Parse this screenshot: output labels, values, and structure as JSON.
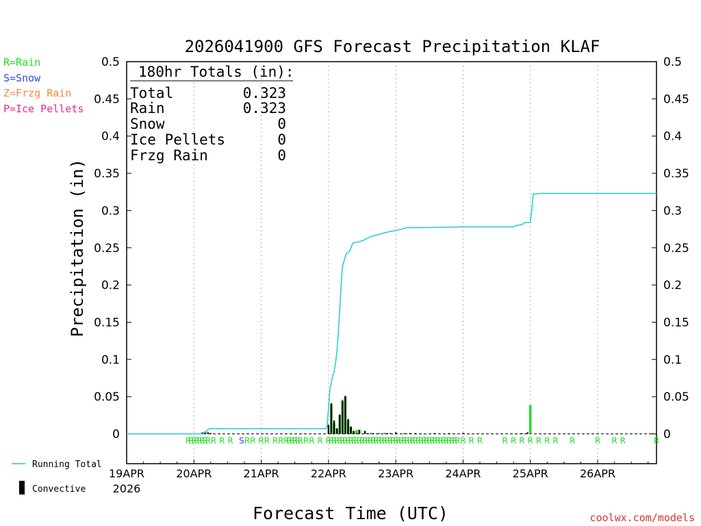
{
  "title": "2026041900 GFS Forecast Precipitation KLAF",
  "legend_types": [
    {
      "label": "R=Rain",
      "color": "#22dd22"
    },
    {
      "label": "S=Snow",
      "color": "#3344ee"
    },
    {
      "label": "Z=Frzg Rain",
      "color": "#f08c3c"
    },
    {
      "label": "P=Ice Pellets",
      "color": "#e8288c"
    }
  ],
  "totals": {
    "header": "180hr Totals (in):",
    "rows": [
      {
        "label": "Total",
        "value": "0.323"
      },
      {
        "label": "Rain",
        "value": "0.323"
      },
      {
        "label": "Snow",
        "value": "0"
      },
      {
        "label": "Ice Pellets",
        "value": "0"
      },
      {
        "label": "Frzg Rain",
        "value": "0"
      }
    ]
  },
  "bottom_legend": {
    "running_total": "Running Total",
    "convective": "Convective"
  },
  "watermark": "coolwx.com/models",
  "colors": {
    "running_total": "#22cccc",
    "convective": "#000000",
    "rain": "#22dd22",
    "snow": "#3344ee",
    "grid": "#aaaaaa",
    "title": "#000000",
    "watermark": "#e03030"
  },
  "chart_data": {
    "type": "bar",
    "title": "2026041900 GFS Forecast Precipitation KLAF",
    "xlabel": "Forecast Time (UTC)",
    "ylabel": "Precipitation (in)",
    "ylim": [
      -0.04,
      0.5
    ],
    "xlim_hours": [
      0,
      189
    ],
    "y_ticks": [
      0,
      0.05,
      0.1,
      0.15,
      0.2,
      0.25,
      0.3,
      0.35,
      0.4,
      0.45,
      0.5
    ],
    "y_tick_labels": [
      "0",
      "0.05",
      "0.1",
      "0.15",
      "0.2",
      "0.25",
      "0.3",
      "0.35",
      "0.4",
      "0.45",
      "0.5"
    ],
    "x_ticks": [
      {
        "hour": 0,
        "label": "19APR",
        "sublabel": "2026"
      },
      {
        "hour": 24,
        "label": "20APR"
      },
      {
        "hour": 48,
        "label": "21APR"
      },
      {
        "hour": 72,
        "label": "22APR"
      },
      {
        "hour": 96,
        "label": "23APR"
      },
      {
        "hour": 120,
        "label": "24APR"
      },
      {
        "hour": 144,
        "label": "25APR"
      },
      {
        "hour": 168,
        "label": "26APR"
      }
    ],
    "running_total": {
      "name": "Running Total",
      "points": [
        [
          0,
          0
        ],
        [
          27,
          0
        ],
        [
          28.5,
          0.003
        ],
        [
          29,
          0.006
        ],
        [
          30,
          0.007
        ],
        [
          71,
          0.007
        ],
        [
          71.5,
          0.01
        ],
        [
          72,
          0.035
        ],
        [
          72.5,
          0.06
        ],
        [
          73.5,
          0.078
        ],
        [
          74,
          0.083
        ],
        [
          74.5,
          0.095
        ],
        [
          75,
          0.11
        ],
        [
          75.5,
          0.135
        ],
        [
          76,
          0.165
        ],
        [
          76.5,
          0.2
        ],
        [
          77,
          0.225
        ],
        [
          78,
          0.238
        ],
        [
          78.5,
          0.243
        ],
        [
          79.5,
          0.245
        ],
        [
          80.5,
          0.255
        ],
        [
          81,
          0.257
        ],
        [
          83,
          0.258
        ],
        [
          85,
          0.261
        ],
        [
          87,
          0.265
        ],
        [
          90,
          0.268
        ],
        [
          93,
          0.271
        ],
        [
          97,
          0.274
        ],
        [
          100,
          0.277
        ],
        [
          104,
          0.277
        ],
        [
          120,
          0.278
        ],
        [
          138,
          0.278
        ],
        [
          139,
          0.28
        ],
        [
          141,
          0.281
        ],
        [
          142,
          0.284
        ],
        [
          144,
          0.284
        ],
        [
          144.5,
          0.3
        ],
        [
          145,
          0.322
        ],
        [
          148,
          0.323
        ],
        [
          189,
          0.323
        ]
      ]
    },
    "convective_series": {
      "name": "Convective",
      "hours": [
        27,
        28,
        29,
        30,
        72,
        73,
        74,
        75,
        76,
        77,
        78,
        79,
        80,
        81,
        82,
        83,
        85,
        86,
        87,
        88,
        90,
        92,
        93,
        94,
        96,
        99,
        101,
        103,
        110,
        115,
        120,
        141,
        143
      ],
      "values": [
        0.002,
        0.003,
        0.002,
        0.001,
        0.012,
        0.041,
        0.018,
        0.007,
        0.026,
        0.044,
        0.051,
        0.02,
        0.01,
        0.004,
        0.001,
        0.005,
        0.004,
        0.001,
        0.001,
        0.001,
        0.001,
        0.001,
        0.001,
        0.001,
        0.002,
        0.001,
        0.001,
        0.001,
        0.001,
        0.001,
        0.001,
        0.001,
        0.002
      ]
    },
    "total_bars": {
      "name": "Rain (total)",
      "hours": [
        28,
        29,
        73,
        74,
        75,
        76,
        77,
        78,
        79,
        80,
        81,
        82,
        83,
        144
      ],
      "values": [
        0.002,
        0.001,
        0.04,
        0.014,
        0.008,
        0.025,
        0.046,
        0.049,
        0.018,
        0.009,
        0.003,
        0.005,
        0.006,
        0.039
      ]
    },
    "precip_type_markers": [
      {
        "hour": 22,
        "type": "R"
      },
      {
        "hour": 23,
        "type": "R"
      },
      {
        "hour": 24,
        "type": "R"
      },
      {
        "hour": 25,
        "type": "R"
      },
      {
        "hour": 26,
        "type": "R"
      },
      {
        "hour": 27,
        "type": "R"
      },
      {
        "hour": 28,
        "type": "R"
      },
      {
        "hour": 29,
        "type": "R"
      },
      {
        "hour": 31,
        "type": "R"
      },
      {
        "hour": 34,
        "type": "R"
      },
      {
        "hour": 37,
        "type": "R"
      },
      {
        "hour": 41,
        "type": "S"
      },
      {
        "hour": 43,
        "type": "R"
      },
      {
        "hour": 45,
        "type": "R"
      },
      {
        "hour": 48,
        "type": "R"
      },
      {
        "hour": 50,
        "type": "R"
      },
      {
        "hour": 53,
        "type": "R"
      },
      {
        "hour": 55,
        "type": "R"
      },
      {
        "hour": 57,
        "type": "R"
      },
      {
        "hour": 58,
        "type": "R"
      },
      {
        "hour": 59,
        "type": "R"
      },
      {
        "hour": 60,
        "type": "R"
      },
      {
        "hour": 61,
        "type": "R"
      },
      {
        "hour": 62,
        "type": "R"
      },
      {
        "hour": 64,
        "type": "R"
      },
      {
        "hour": 66,
        "type": "R"
      },
      {
        "hour": 69,
        "type": "R"
      },
      {
        "hour": 72,
        "type": "R"
      },
      {
        "hour": 73,
        "type": "R"
      },
      {
        "hour": 74,
        "type": "R"
      },
      {
        "hour": 75,
        "type": "R"
      },
      {
        "hour": 76,
        "type": "R"
      },
      {
        "hour": 77,
        "type": "R"
      },
      {
        "hour": 78,
        "type": "R"
      },
      {
        "hour": 79,
        "type": "R"
      },
      {
        "hour": 80,
        "type": "R"
      },
      {
        "hour": 81,
        "type": "R"
      },
      {
        "hour": 82,
        "type": "R"
      },
      {
        "hour": 83,
        "type": "R"
      },
      {
        "hour": 84,
        "type": "R"
      },
      {
        "hour": 85,
        "type": "R"
      },
      {
        "hour": 86,
        "type": "R"
      },
      {
        "hour": 87,
        "type": "R"
      },
      {
        "hour": 88,
        "type": "R"
      },
      {
        "hour": 89,
        "type": "R"
      },
      {
        "hour": 90,
        "type": "R"
      },
      {
        "hour": 91,
        "type": "R"
      },
      {
        "hour": 92,
        "type": "R"
      },
      {
        "hour": 93,
        "type": "R"
      },
      {
        "hour": 94,
        "type": "R"
      },
      {
        "hour": 95,
        "type": "R"
      },
      {
        "hour": 96,
        "type": "R"
      },
      {
        "hour": 97,
        "type": "R"
      },
      {
        "hour": 98,
        "type": "R"
      },
      {
        "hour": 99,
        "type": "R"
      },
      {
        "hour": 100,
        "type": "R"
      },
      {
        "hour": 101,
        "type": "R"
      },
      {
        "hour": 102,
        "type": "R"
      },
      {
        "hour": 103,
        "type": "R"
      },
      {
        "hour": 104,
        "type": "R"
      },
      {
        "hour": 105,
        "type": "R"
      },
      {
        "hour": 106,
        "type": "R"
      },
      {
        "hour": 107,
        "type": "R"
      },
      {
        "hour": 108,
        "type": "R"
      },
      {
        "hour": 109,
        "type": "R"
      },
      {
        "hour": 110,
        "type": "R"
      },
      {
        "hour": 111,
        "type": "R"
      },
      {
        "hour": 112,
        "type": "R"
      },
      {
        "hour": 113,
        "type": "R"
      },
      {
        "hour": 114,
        "type": "R"
      },
      {
        "hour": 115,
        "type": "R"
      },
      {
        "hour": 116,
        "type": "R"
      },
      {
        "hour": 117,
        "type": "R"
      },
      {
        "hour": 118,
        "type": "R"
      },
      {
        "hour": 120,
        "type": "R"
      },
      {
        "hour": 123,
        "type": "R"
      },
      {
        "hour": 126,
        "type": "R"
      },
      {
        "hour": 135,
        "type": "R"
      },
      {
        "hour": 138,
        "type": "R"
      },
      {
        "hour": 141,
        "type": "R"
      },
      {
        "hour": 144,
        "type": "R"
      },
      {
        "hour": 147,
        "type": "R"
      },
      {
        "hour": 150,
        "type": "R"
      },
      {
        "hour": 153,
        "type": "R"
      },
      {
        "hour": 159,
        "type": "R"
      },
      {
        "hour": 168,
        "type": "R"
      },
      {
        "hour": 174,
        "type": "R"
      },
      {
        "hour": 177,
        "type": "R"
      },
      {
        "hour": 189,
        "type": "R"
      }
    ]
  }
}
